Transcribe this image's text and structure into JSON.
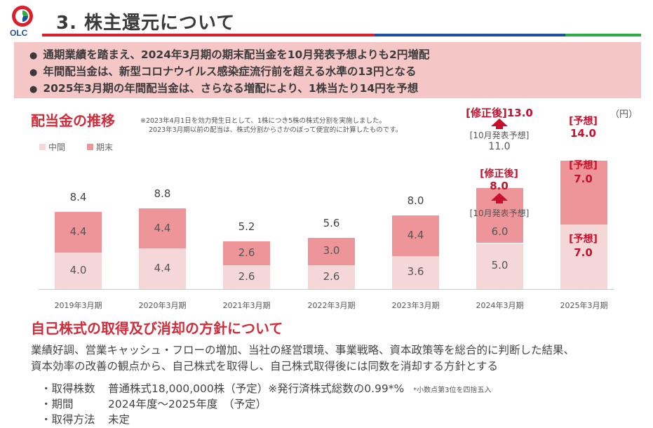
{
  "header": {
    "logo_text": "OLC",
    "title": "3. 株主還元について",
    "colors": {
      "red": "#d9212e",
      "blue": "#1f4fa3",
      "green": "#2eab48"
    }
  },
  "summary": {
    "bullet": "●",
    "items": [
      "通期業績を踏まえ、2024年3月期の期末配当金を10月発表予想よりも2円増配",
      "年間配当金は、新型コロナウイルス感染症流行前を超える水準の13円となる",
      "2025年3月期の年間配当金は、さらなる増配により、1株当たり14円を予想"
    ]
  },
  "chart_section": {
    "title": "配当金の推移",
    "note_line1": "※2023年4月1日を効力発生日として、1株につき5株の株式分割を実施しました。",
    "note_line2": "2023年3月期以前の配当は、株式分割からさかのぼって便宜的に計算したものです。",
    "unit": "（円）"
  },
  "chart_data": {
    "type": "bar",
    "stacked": true,
    "categories": [
      "2019年3月期",
      "2020年3月期",
      "2021年3月期",
      "2022年3月期",
      "2023年3月期",
      "2024年3月期",
      "2025年3月期"
    ],
    "series": [
      {
        "name": "中間",
        "color": "#f5d7d7",
        "values": [
          4.0,
          4.4,
          2.6,
          2.6,
          3.6,
          5.0,
          7.0
        ]
      },
      {
        "name": "期末",
        "color": "#ee959a",
        "values": [
          4.4,
          4.4,
          2.6,
          3.0,
          4.4,
          6.0,
          7.0
        ]
      }
    ],
    "value_labels": {
      "mid": [
        "4.0",
        "4.4",
        "2.6",
        "2.6",
        "3.6",
        "5.0",
        "7.0"
      ],
      "end": [
        "4.4",
        "4.4",
        "2.6",
        "3.0",
        "4.4",
        "6.0",
        "7.0"
      ],
      "total": [
        "8.4",
        "8.8",
        "5.2",
        "5.6",
        "8.0",
        "11.0",
        "14.0"
      ]
    },
    "ylim": [
      0,
      15
    ],
    "legend": {
      "mid": "中間",
      "end": "期末"
    },
    "annotations": {
      "fy2024_revised_total": "[修正後]13.0",
      "fy2024_oct_forecast_label": "[10月発表予想]",
      "fy2024_oct_forecast_total": "11.0",
      "fy2024_revised_end_label": "[修正後]",
      "fy2024_revised_end_value": "8.0",
      "fy2024_oct_forecast_end_label": "[10月発表予想]",
      "fy2025_forecast_label": "[予想]",
      "fy2025_total": "14.0",
      "fy2025_end": "7.0",
      "fy2025_mid": "7.0"
    }
  },
  "policy": {
    "title": "自己株式の取得及び消却の方針について",
    "text_line1": "業績好調、営業キャッシュ・フローの増加、当社の経営環境、事業戦略、資本政策等を総合的に判断した結果、",
    "text_line2": "資本効率の改善の観点から、自己株式を取得し、自己株式取得後には同数を消却する方針とする",
    "details": [
      {
        "label": "・取得株数",
        "value": "普通株式18,000,000株（予定）※発行済株式総数の0.99*%",
        "note": "*小数点第3位を四捨五入"
      },
      {
        "label": "・期間",
        "value": "2024年度～2025年度　（予定）",
        "note": ""
      },
      {
        "label": "・取得方法",
        "value": "未定",
        "note": ""
      }
    ]
  }
}
